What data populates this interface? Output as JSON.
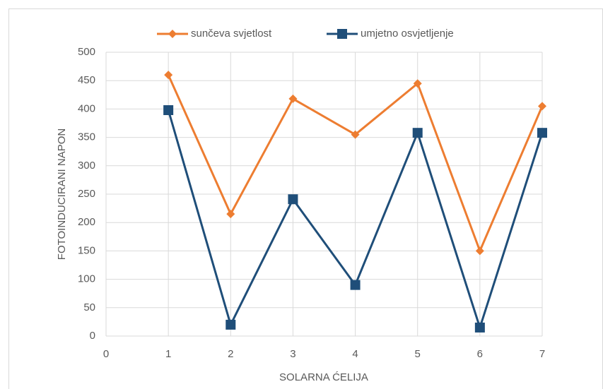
{
  "chart_data": {
    "type": "line",
    "x": [
      1,
      2,
      3,
      4,
      5,
      6,
      7
    ],
    "series": [
      {
        "name": "sunčeva svjetlost",
        "color": "#ed7d31",
        "marker": "diamond",
        "values": [
          460,
          215,
          418,
          355,
          445,
          150,
          405
        ]
      },
      {
        "name": "umjetno osvjetljenje",
        "color": "#1f4e79",
        "marker": "square",
        "values": [
          398,
          20,
          241,
          90,
          358,
          15,
          358
        ]
      }
    ],
    "xlabel": "SOLARNA ĆELIJA",
    "ylabel": "FOTOINDUCIRANI NAPON",
    "xlim": [
      0,
      7
    ],
    "xticks": [
      0,
      1,
      2,
      3,
      4,
      5,
      6,
      7
    ],
    "ylim": [
      0,
      500
    ],
    "yticks": [
      0,
      50,
      100,
      150,
      200,
      250,
      300,
      350,
      400,
      450,
      500
    ],
    "grid": true,
    "legend": "top"
  }
}
